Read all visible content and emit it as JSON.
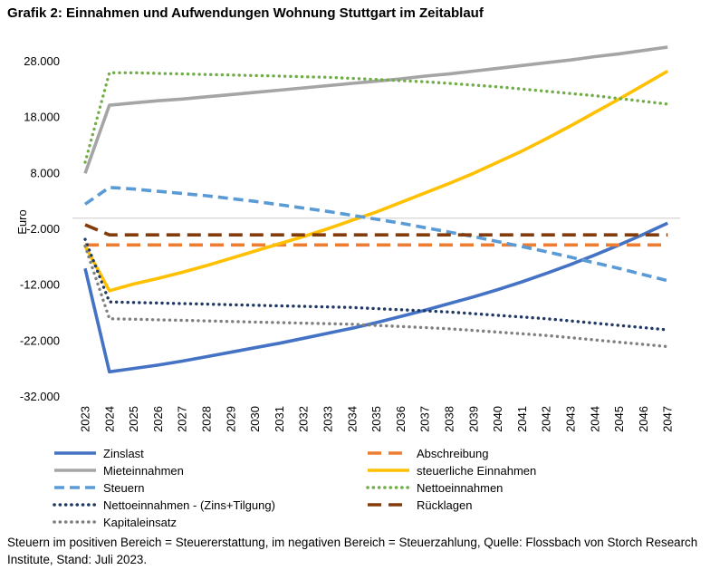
{
  "title": "Grafik 2: Einnahmen und Aufwendungen Wohnung Stuttgart im Zeitablauf",
  "footnote": "Steuern im positiven Bereich = Steuererstattung, im negativen Bereich = Steuerzahlung, Quelle: Flossbach von Storch Research Institute, Stand: Juli 2023.",
  "chart_data": {
    "type": "line",
    "title": "Grafik 2: Einnahmen und Aufwendungen Wohnung Stuttgart im Zeitablauf",
    "xlabel": "",
    "ylabel": "Euro",
    "ylim": [
      -32000,
      28000
    ],
    "yticks": [
      28000,
      18000,
      8000,
      -2000,
      -12000,
      -22000,
      -32000
    ],
    "ytick_labels": [
      "28.000",
      "18.000",
      "8.000",
      "-2.000",
      "-12.000",
      "-22.000",
      "-32.000"
    ],
    "zero_line": 0,
    "categories": [
      "2023",
      "2024",
      "2025",
      "2026",
      "2027",
      "2028",
      "2029",
      "2030",
      "2031",
      "2032",
      "2033",
      "2034",
      "2035",
      "2036",
      "2037",
      "2038",
      "2039",
      "2040",
      "2041",
      "2042",
      "2043",
      "2044",
      "2045",
      "2046",
      "2047"
    ],
    "series": [
      {
        "name": "Zinslast",
        "color": "#4472C4",
        "dash": "solid",
        "values": [
          -9000,
          -27500,
          -26900,
          -26300,
          -25600,
          -24800,
          -24000,
          -23200,
          -22400,
          -21500,
          -20600,
          -19700,
          -18700,
          -17600,
          -16500,
          -15300,
          -14100,
          -12800,
          -11400,
          -9900,
          -8300,
          -6600,
          -4800,
          -2900,
          -900
        ]
      },
      {
        "name": "Abschreibung",
        "color": "#ED7D31",
        "dash": "longdash",
        "values": [
          -4800,
          -4800,
          -4800,
          -4800,
          -4800,
          -4800,
          -4800,
          -4800,
          -4800,
          -4800,
          -4800,
          -4800,
          -4800,
          -4800,
          -4800,
          -4800,
          -4800,
          -4800,
          -4800,
          -4800,
          -4800,
          -4800,
          -4800,
          -4800,
          -4800
        ]
      },
      {
        "name": "Mieteinnahmen",
        "color": "#A5A5A5",
        "dash": "solid",
        "values": [
          8000,
          20200,
          20600,
          21000,
          21300,
          21700,
          22100,
          22500,
          22900,
          23300,
          23700,
          24100,
          24500,
          24900,
          25400,
          25800,
          26300,
          26800,
          27300,
          27800,
          28300,
          28900,
          29400,
          30000,
          30600
        ]
      },
      {
        "name": "steuerliche Einnahmen",
        "color": "#FFC000",
        "dash": "solid",
        "values": [
          -5000,
          -13000,
          -11800,
          -10800,
          -9700,
          -8500,
          -7200,
          -5900,
          -4600,
          -3300,
          -1900,
          -400,
          1100,
          2800,
          4500,
          6200,
          8000,
          10000,
          12000,
          14200,
          16500,
          18900,
          21300,
          23800,
          26300
        ]
      },
      {
        "name": "Steuern",
        "color": "#5B9BD5",
        "dash": "dashed",
        "values": [
          2500,
          5500,
          5200,
          4800,
          4400,
          4000,
          3500,
          3000,
          2400,
          1800,
          1200,
          500,
          -200,
          -900,
          -1700,
          -2500,
          -3300,
          -4200,
          -5100,
          -6000,
          -7000,
          -8000,
          -9000,
          -10100,
          -11200
        ]
      },
      {
        "name": "Nettoeinnahmen",
        "color": "#70AD47",
        "dash": "dotted",
        "values": [
          10000,
          26000,
          26000,
          25900,
          25800,
          25700,
          25600,
          25500,
          25400,
          25300,
          25200,
          25000,
          24800,
          24600,
          24400,
          24100,
          23800,
          23500,
          23100,
          22700,
          22300,
          21900,
          21400,
          20900,
          20400
        ]
      },
      {
        "name": "Nettoeinnahmen - (Zins+Tilgung)",
        "color": "#203864",
        "dash": "dotted",
        "values": [
          -3800,
          -15000,
          -15100,
          -15200,
          -15300,
          -15400,
          -15500,
          -15600,
          -15700,
          -15800,
          -15900,
          -16000,
          -16200,
          -16400,
          -16600,
          -16800,
          -17100,
          -17400,
          -17700,
          -18000,
          -18400,
          -18800,
          -19200,
          -19600,
          -20000
        ]
      },
      {
        "name": "Rücklagen",
        "color": "#843C0C",
        "dash": "longdash",
        "values": [
          -1200,
          -3000,
          -3000,
          -3000,
          -3000,
          -3000,
          -3000,
          -3000,
          -3000,
          -3000,
          -3000,
          -3000,
          -3000,
          -3000,
          -3000,
          -3000,
          -3000,
          -3000,
          -3000,
          -3000,
          -3000,
          -3000,
          -3000,
          -3000,
          -3000
        ]
      },
      {
        "name": "Kapitaleinsatz",
        "color": "#7F7F7F",
        "dash": "dotted",
        "values": [
          -5000,
          -18000,
          -18100,
          -18200,
          -18300,
          -18400,
          -18500,
          -18600,
          -18700,
          -18800,
          -18900,
          -19000,
          -19200,
          -19400,
          -19600,
          -19800,
          -20100,
          -20400,
          -20700,
          -21000,
          -21400,
          -21800,
          -22200,
          -22600,
          -23000
        ]
      }
    ],
    "legend_placement": "bottom",
    "grid": false
  }
}
